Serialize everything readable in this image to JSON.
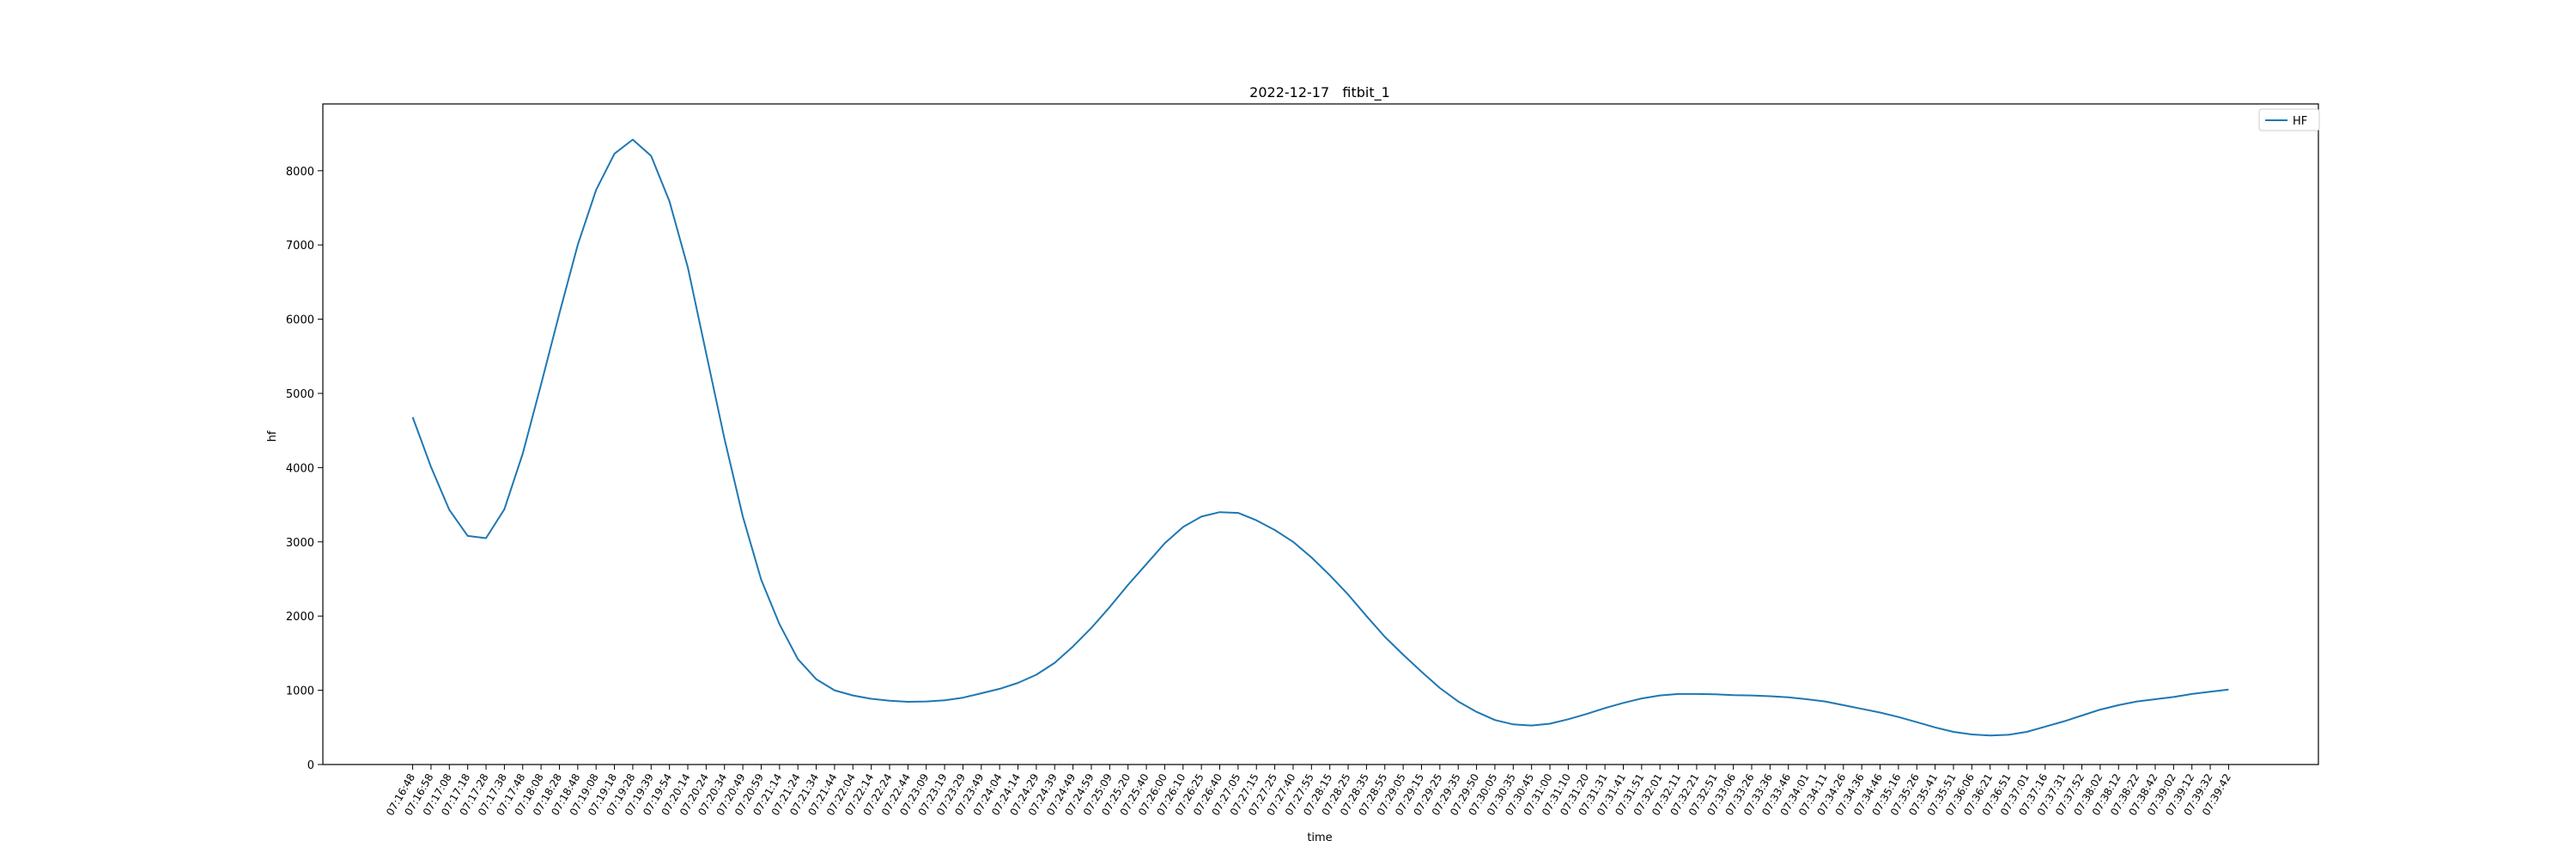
{
  "chart_data": {
    "type": "line",
    "title": "2022-12-17   fitbit_1",
    "xlabel": "time",
    "ylabel": "hf",
    "ylim": [
      0,
      8900
    ],
    "yticks": [
      0,
      1000,
      2000,
      3000,
      4000,
      5000,
      6000,
      7000,
      8000
    ],
    "grid": false,
    "legend_position": "top-right",
    "x": [
      "07:16:48",
      "07:16:58",
      "07:17:08",
      "07:17:18",
      "07:17:28",
      "07:17:38",
      "07:17:48",
      "07:18:08",
      "07:18:28",
      "07:18:48",
      "07:19:08",
      "07:19:18",
      "07:19:28",
      "07:19:39",
      "07:19:54",
      "07:20:14",
      "07:20:24",
      "07:20:34",
      "07:20:49",
      "07:20:59",
      "07:21:14",
      "07:21:24",
      "07:21:34",
      "07:21:44",
      "07:22:04",
      "07:22:14",
      "07:22:24",
      "07:22:44",
      "07:23:09",
      "07:23:19",
      "07:23:29",
      "07:23:49",
      "07:24:04",
      "07:24:14",
      "07:24:29",
      "07:24:39",
      "07:24:49",
      "07:24:59",
      "07:25:09",
      "07:25:20",
      "07:25:40",
      "07:26:00",
      "07:26:10",
      "07:26:25",
      "07:26:40",
      "07:27:05",
      "07:27:15",
      "07:27:25",
      "07:27:40",
      "07:27:55",
      "07:28:15",
      "07:28:25",
      "07:28:35",
      "07:28:55",
      "07:29:05",
      "07:29:15",
      "07:29:25",
      "07:29:35",
      "07:29:50",
      "07:30:05",
      "07:30:35",
      "07:30:45",
      "07:31:00",
      "07:31:10",
      "07:31:20",
      "07:31:31",
      "07:31:41",
      "07:31:51",
      "07:32:01",
      "07:32:11",
      "07:32:21",
      "07:32:51",
      "07:33:06",
      "07:33:26",
      "07:33:36",
      "07:33:46",
      "07:34:01",
      "07:34:11",
      "07:34:26",
      "07:34:36",
      "07:34:46",
      "07:35:16",
      "07:35:26",
      "07:35:41",
      "07:35:51",
      "07:36:06",
      "07:36:21",
      "07:36:51",
      "07:37:01",
      "07:37:16",
      "07:37:31",
      "07:37:52",
      "07:38:02",
      "07:38:12",
      "07:38:22",
      "07:38:42",
      "07:39:02",
      "07:39:12",
      "07:39:32",
      "07:39:42"
    ],
    "series": [
      {
        "name": "HF",
        "color": "#1f77b4",
        "values": [
          4680,
          4010,
          3430,
          3080,
          3050,
          3440,
          4190,
          5120,
          6080,
          7000,
          7740,
          8230,
          8420,
          8200,
          7590,
          6700,
          5540,
          4390,
          3340,
          2490,
          1890,
          1420,
          1150,
          1000,
          930,
          885,
          860,
          845,
          850,
          865,
          900,
          960,
          1020,
          1100,
          1210,
          1370,
          1590,
          1840,
          2120,
          2420,
          2700,
          2980,
          3200,
          3340,
          3400,
          3390,
          3290,
          3160,
          3000,
          2790,
          2550,
          2290,
          2000,
          1720,
          1480,
          1250,
          1030,
          850,
          710,
          600,
          540,
          525,
          550,
          610,
          680,
          760,
          830,
          890,
          930,
          950,
          950,
          945,
          935,
          930,
          920,
          905,
          880,
          850,
          800,
          750,
          700,
          640,
          570,
          500,
          440,
          405,
          390,
          400,
          440,
          510,
          580,
          660,
          740,
          800,
          850,
          880,
          910,
          950,
          980,
          1010
        ]
      }
    ]
  }
}
